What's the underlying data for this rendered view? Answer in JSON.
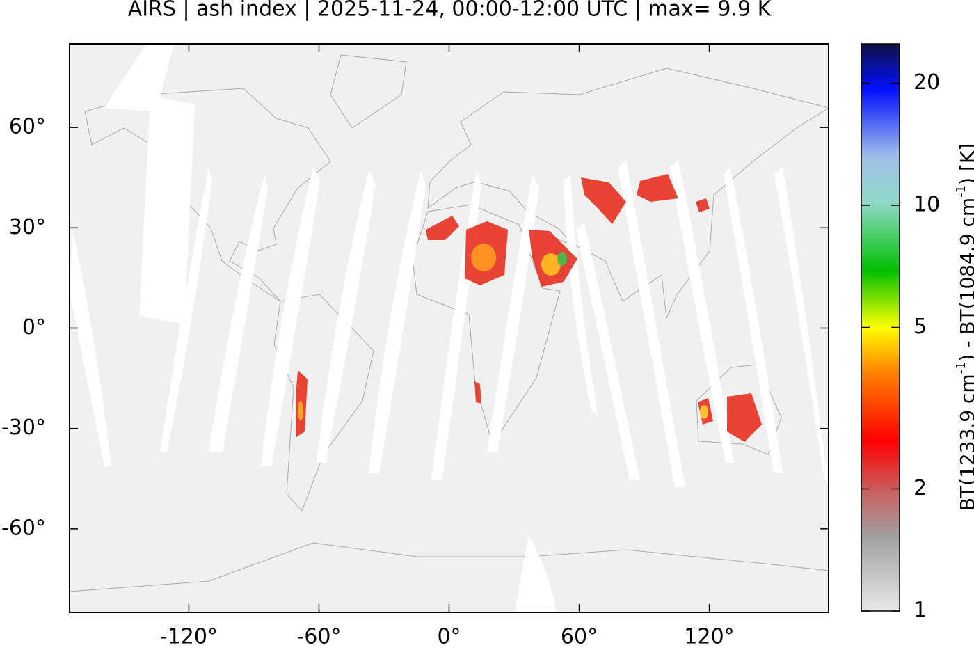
{
  "title": "AIRS | ash index | 2025-11-24, 00:00-12:00 UTC | max= 9.9 K",
  "map": {
    "xlim": [
      -175,
      175
    ],
    "ylim": [
      -85,
      85
    ],
    "xticks": [
      {
        "value": -120,
        "label": "-120°"
      },
      {
        "value": -60,
        "label": "-60°"
      },
      {
        "value": 0,
        "label": "0°"
      },
      {
        "value": 60,
        "label": "60°"
      },
      {
        "value": 120,
        "label": "120°"
      }
    ],
    "yticks": [
      {
        "value": 60,
        "label": "60°"
      },
      {
        "value": 30,
        "label": "30°"
      },
      {
        "value": 0,
        "label": "0°"
      },
      {
        "value": -30,
        "label": "-30°"
      },
      {
        "value": -60,
        "label": "-60°"
      }
    ]
  },
  "colorbar": {
    "scale": "log",
    "lim": [
      1,
      25
    ],
    "ticks": [
      1,
      2,
      5,
      10,
      20
    ],
    "label": [
      "BT(1233.9 cm",
      "-1",
      ") - BT(1084.9 cm",
      "-1",
      ") [K]"
    ]
  }
}
